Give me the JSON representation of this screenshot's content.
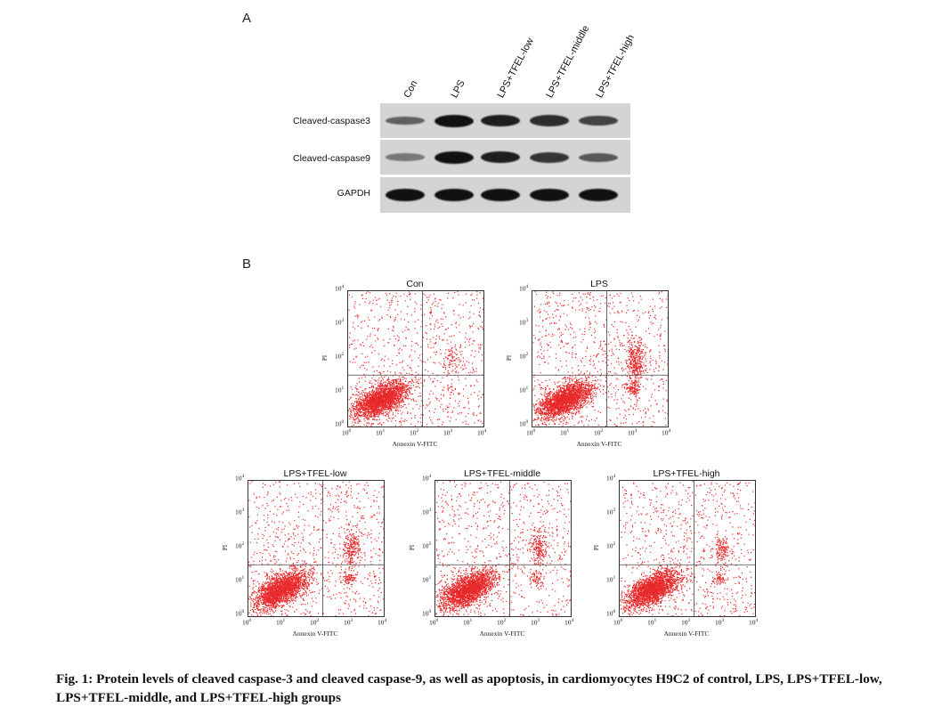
{
  "panel_a_label": "A",
  "panel_b_label": "B",
  "blot": {
    "lanes": [
      "Con",
      "LPS",
      "LPS+TFEL-low",
      "LPS+TFEL-middle",
      "LPS+TFEL-high"
    ],
    "rows": [
      {
        "label": "Cleaved-caspase3",
        "intensity": [
          0.45,
          1.0,
          0.9,
          0.8,
          0.65
        ]
      },
      {
        "label": "Cleaved-caspase9",
        "intensity": [
          0.3,
          1.0,
          0.9,
          0.75,
          0.5
        ]
      },
      {
        "label": "GAPDH",
        "intensity": [
          1.0,
          1.0,
          1.0,
          1.0,
          1.0
        ]
      }
    ]
  },
  "flow": {
    "x_axis_label": "Annexin V-FITC",
    "y_axis_label": "PI",
    "plots": [
      {
        "title": "Con",
        "late_cluster": 0.1,
        "early_cluster": 0.0
      },
      {
        "title": "LPS",
        "late_cluster": 1.0,
        "early_cluster": 0.6
      },
      {
        "title": "LPS+TFEL-low",
        "late_cluster": 0.6,
        "early_cluster": 0.4
      },
      {
        "title": "LPS+TFEL-middle",
        "late_cluster": 0.5,
        "early_cluster": 0.3
      },
      {
        "title": "LPS+TFEL-high",
        "late_cluster": 0.3,
        "early_cluster": 0.25
      }
    ]
  },
  "colors": {
    "dot": "#e8282a",
    "band": "#111111",
    "blot_bg": "#d4d4d4"
  },
  "caption": "Fig. 1: Protein levels of cleaved caspase-3 and cleaved caspase-9, as well as apoptosis, in cardiomyocytes H9C2 of control, LPS, LPS+TFEL-low, LPS+TFEL-middle, and LPS+TFEL-high groups"
}
